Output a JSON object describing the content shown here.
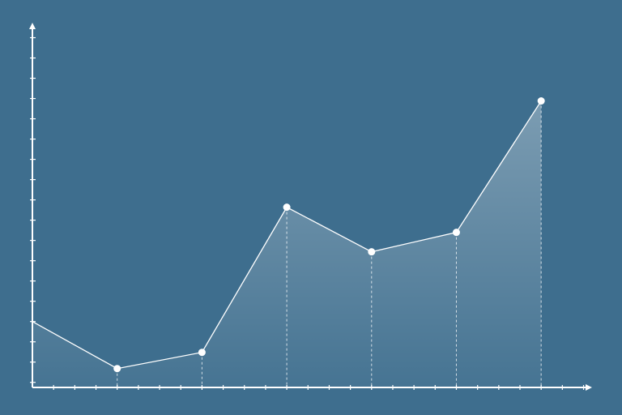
{
  "chart_data": {
    "type": "area",
    "x": [
      0,
      1,
      2,
      3,
      4,
      5,
      6
    ],
    "values": [
      3,
      0.68,
      1.48,
      8.64,
      6.44,
      7.4,
      13.88
    ],
    "xlim": [
      0,
      6.6
    ],
    "ylim": [
      -0.25,
      17.9
    ],
    "xticks": [
      0.25,
      0.5,
      0.75,
      1,
      1.25,
      1.5,
      1.75,
      2,
      2.25,
      2.5,
      2.75,
      3,
      3.25,
      3.5,
      3.75,
      4,
      4.25,
      4.5,
      4.75,
      5,
      5.25,
      5.5,
      5.75,
      6,
      6.25,
      6.5
    ],
    "yticks": [
      0,
      1,
      2,
      3,
      4,
      5,
      6,
      7,
      8,
      9,
      10,
      11,
      12,
      13,
      14,
      15,
      16,
      17
    ],
    "color": "#ffffff",
    "background": "#3e6e8e"
  }
}
